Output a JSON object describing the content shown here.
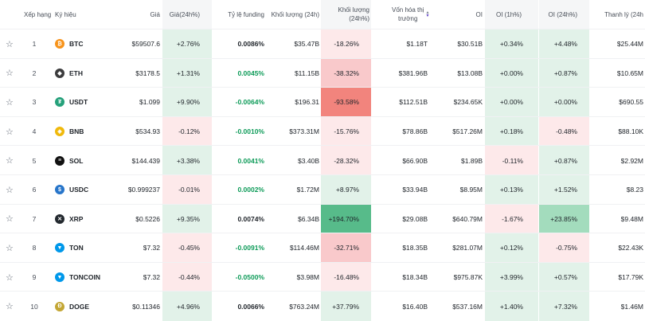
{
  "headers": {
    "rank": "Xếp hạng",
    "symbol": "Ký hiệu",
    "price": "Giá",
    "change": "Giá(24h%)",
    "funding": "Tỷ lệ funding",
    "volume": "Khối lượng (24h)",
    "volume_change": "Khối lượng (24h%)",
    "mcap_line1": "Vốn hóa thị",
    "mcap_line2": "trường",
    "oi": "OI",
    "oi_1h": "OI (1h%)",
    "oi_24h": "OI (24h%)",
    "liq": "Thanh lý (24h"
  },
  "colors": {
    "btc": "#f7931a",
    "eth": "#3c3c3d",
    "usdt": "#26a17b",
    "bnb": "#f0b90b",
    "sol": "#111111",
    "usdc": "#2775ca",
    "xrp": "#23292f",
    "ton": "#0098ea",
    "toncoin": "#0098ea",
    "doge": "#c3a634"
  },
  "rows": [
    {
      "rank": "1",
      "symbol": "BTC",
      "icon": "btc-logo-icon",
      "glyph": "₿",
      "color": "#f7931a",
      "price": "$59507.6",
      "change": "+2.76%",
      "change_tone": "g1",
      "funding": "0.0086%",
      "funding_tone": "blk",
      "volume": "$35.47B",
      "volume_change": "-18.26%",
      "volume_change_tone": "r1",
      "mcap": "$1.18T",
      "oi": "$30.51B",
      "oi_1h": "+0.34%",
      "oi_1h_tone": "g1",
      "oi_24h": "+4.48%",
      "oi_24h_tone": "g1",
      "liq": "$25.44M"
    },
    {
      "rank": "2",
      "symbol": "ETH",
      "icon": "eth-logo-icon",
      "glyph": "◆",
      "color": "#3c3c3d",
      "price": "$3178.5",
      "change": "+1.31%",
      "change_tone": "g1",
      "funding": "0.0045%",
      "funding_tone": "pos",
      "volume": "$11.15B",
      "volume_change": "-38.32%",
      "volume_change_tone": "r2",
      "mcap": "$381.96B",
      "oi": "$13.08B",
      "oi_1h": "+0.00%",
      "oi_1h_tone": "g1",
      "oi_24h": "+0.87%",
      "oi_24h_tone": "g1",
      "liq": "$10.65M"
    },
    {
      "rank": "3",
      "symbol": "USDT",
      "icon": "usdt-logo-icon",
      "glyph": "₮",
      "color": "#26a17b",
      "price": "$1.099",
      "change": "+9.90%",
      "change_tone": "g1",
      "funding": "-0.0064%",
      "funding_tone": "pos",
      "volume": "$196.31",
      "volume_change": "-93.58%",
      "volume_change_tone": "r3",
      "mcap": "$112.51B",
      "oi": "$234.65K",
      "oi_1h": "+0.00%",
      "oi_1h_tone": "g1",
      "oi_24h": "+0.00%",
      "oi_24h_tone": "g1",
      "liq": "$690.55"
    },
    {
      "rank": "4",
      "symbol": "BNB",
      "icon": "bnb-logo-icon",
      "glyph": "◈",
      "color": "#f0b90b",
      "price": "$534.93",
      "change": "-0.12%",
      "change_tone": "r1",
      "funding": "-0.0010%",
      "funding_tone": "pos",
      "volume": "$373.31M",
      "volume_change": "-15.76%",
      "volume_change_tone": "r1",
      "mcap": "$78.86B",
      "oi": "$517.26M",
      "oi_1h": "+0.18%",
      "oi_1h_tone": "g1",
      "oi_24h": "-0.48%",
      "oi_24h_tone": "r1",
      "liq": "$88.10K"
    },
    {
      "rank": "5",
      "symbol": "SOL",
      "icon": "sol-logo-icon",
      "glyph": "≡",
      "color": "#111111",
      "price": "$144.439",
      "change": "+3.38%",
      "change_tone": "g1",
      "funding": "0.0041%",
      "funding_tone": "pos",
      "volume": "$3.40B",
      "volume_change": "-28.32%",
      "volume_change_tone": "r1",
      "mcap": "$66.90B",
      "oi": "$1.89B",
      "oi_1h": "-0.11%",
      "oi_1h_tone": "r1",
      "oi_24h": "+0.87%",
      "oi_24h_tone": "g1",
      "liq": "$2.92M"
    },
    {
      "rank": "6",
      "symbol": "USDC",
      "icon": "usdc-logo-icon",
      "glyph": "$",
      "color": "#2775ca",
      "price": "$0.999237",
      "change": "-0.01%",
      "change_tone": "r1",
      "funding": "0.0002%",
      "funding_tone": "pos",
      "volume": "$1.72M",
      "volume_change": "+8.97%",
      "volume_change_tone": "g1",
      "mcap": "$33.94B",
      "oi": "$8.95M",
      "oi_1h": "+0.13%",
      "oi_1h_tone": "g1",
      "oi_24h": "+1.52%",
      "oi_24h_tone": "g1",
      "liq": "$8.23"
    },
    {
      "rank": "7",
      "symbol": "XRP",
      "icon": "xrp-logo-icon",
      "glyph": "✕",
      "color": "#23292f",
      "price": "$0.5226",
      "change": "+9.35%",
      "change_tone": "g1",
      "funding": "0.0074%",
      "funding_tone": "blk",
      "volume": "$6.34B",
      "volume_change": "+194.70%",
      "volume_change_tone": "g3",
      "mcap": "$29.08B",
      "oi": "$640.79M",
      "oi_1h": "-1.67%",
      "oi_1h_tone": "r1",
      "oi_24h": "+23.85%",
      "oi_24h_tone": "g2",
      "liq": "$9.48M"
    },
    {
      "rank": "8",
      "symbol": "TON",
      "icon": "ton-logo-icon",
      "glyph": "▼",
      "color": "#0098ea",
      "price": "$7.32",
      "change": "-0.45%",
      "change_tone": "r1",
      "funding": "-0.0091%",
      "funding_tone": "pos",
      "volume": "$114.46M",
      "volume_change": "-32.71%",
      "volume_change_tone": "r2",
      "mcap": "$18.35B",
      "oi": "$281.07M",
      "oi_1h": "+0.12%",
      "oi_1h_tone": "g1",
      "oi_24h": "-0.75%",
      "oi_24h_tone": "r1",
      "liq": "$22.43K"
    },
    {
      "rank": "9",
      "symbol": "TONCOIN",
      "icon": "toncoin-logo-icon",
      "glyph": "▼",
      "color": "#0098ea",
      "price": "$7.32",
      "change": "-0.44%",
      "change_tone": "r1",
      "funding": "-0.0500%",
      "funding_tone": "pos",
      "volume": "$3.98M",
      "volume_change": "-16.48%",
      "volume_change_tone": "r1",
      "mcap": "$18.34B",
      "oi": "$975.87K",
      "oi_1h": "+3.99%",
      "oi_1h_tone": "g1",
      "oi_24h": "+0.57%",
      "oi_24h_tone": "g1",
      "liq": "$17.79K"
    },
    {
      "rank": "10",
      "symbol": "DOGE",
      "icon": "doge-logo-icon",
      "glyph": "Ð",
      "color": "#c3a634",
      "price": "$0.11346",
      "change": "+4.96%",
      "change_tone": "g1",
      "funding": "0.0066%",
      "funding_tone": "blk",
      "volume": "$763.24M",
      "volume_change": "+37.79%",
      "volume_change_tone": "g1",
      "mcap": "$16.40B",
      "oi": "$537.16M",
      "oi_1h": "+1.40%",
      "oi_1h_tone": "g1",
      "oi_24h": "+7.32%",
      "oi_24h_tone": "g1",
      "liq": "$1.46M"
    }
  ]
}
